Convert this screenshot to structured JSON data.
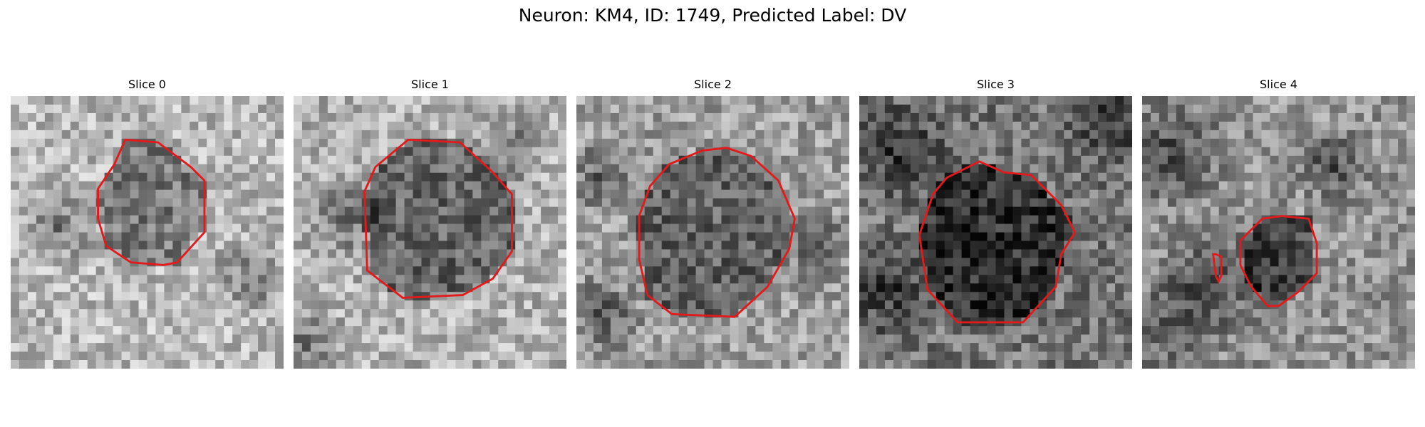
{
  "figure": {
    "title": "Neuron: KM4, ID: 1749, Predicted Label: DV"
  },
  "colors": {
    "contour": "#e31a1c",
    "background": "#ffffff"
  },
  "panels": [
    {
      "title": "Slice 0",
      "center_intensity": 0.48,
      "surround_intensity": 0.72,
      "contour": [
        [
          0.42,
          0.16
        ],
        [
          0.54,
          0.17
        ],
        [
          0.66,
          0.26
        ],
        [
          0.71,
          0.31
        ],
        [
          0.71,
          0.5
        ],
        [
          0.61,
          0.61
        ],
        [
          0.56,
          0.62
        ],
        [
          0.44,
          0.61
        ],
        [
          0.35,
          0.55
        ],
        [
          0.32,
          0.45
        ],
        [
          0.32,
          0.34
        ],
        [
          0.38,
          0.25
        ]
      ],
      "dark_blobs": [
        [
          0.18,
          0.47,
          0.1
        ],
        [
          0.88,
          0.66,
          0.1
        ]
      ]
    },
    {
      "title": "Slice 1",
      "center_intensity": 0.4,
      "surround_intensity": 0.7,
      "contour": [
        [
          0.42,
          0.16
        ],
        [
          0.61,
          0.17
        ],
        [
          0.73,
          0.28
        ],
        [
          0.8,
          0.36
        ],
        [
          0.8,
          0.57
        ],
        [
          0.73,
          0.67
        ],
        [
          0.62,
          0.73
        ],
        [
          0.4,
          0.74
        ],
        [
          0.27,
          0.64
        ],
        [
          0.26,
          0.35
        ],
        [
          0.3,
          0.26
        ]
      ],
      "dark_blobs": [
        [
          0.2,
          0.45,
          0.12
        ],
        [
          0.8,
          0.2,
          0.1
        ],
        [
          0.05,
          0.9,
          0.1
        ]
      ]
    },
    {
      "title": "Slice 2",
      "center_intensity": 0.38,
      "surround_intensity": 0.62,
      "contour": [
        [
          0.46,
          0.2
        ],
        [
          0.55,
          0.19
        ],
        [
          0.64,
          0.22
        ],
        [
          0.74,
          0.31
        ],
        [
          0.8,
          0.45
        ],
        [
          0.78,
          0.56
        ],
        [
          0.7,
          0.7
        ],
        [
          0.58,
          0.81
        ],
        [
          0.35,
          0.8
        ],
        [
          0.26,
          0.73
        ],
        [
          0.23,
          0.6
        ],
        [
          0.23,
          0.44
        ],
        [
          0.27,
          0.33
        ],
        [
          0.34,
          0.25
        ]
      ],
      "dark_blobs": [
        [
          0.1,
          0.3,
          0.1
        ],
        [
          0.88,
          0.55,
          0.1
        ],
        [
          0.1,
          0.8,
          0.1
        ]
      ]
    },
    {
      "title": "Slice 3",
      "center_intensity": 0.18,
      "surround_intensity": 0.46,
      "contour": [
        [
          0.44,
          0.24
        ],
        [
          0.53,
          0.28
        ],
        [
          0.63,
          0.29
        ],
        [
          0.74,
          0.4
        ],
        [
          0.79,
          0.5
        ],
        [
          0.74,
          0.58
        ],
        [
          0.72,
          0.7
        ],
        [
          0.6,
          0.83
        ],
        [
          0.36,
          0.83
        ],
        [
          0.25,
          0.71
        ],
        [
          0.22,
          0.51
        ],
        [
          0.27,
          0.36
        ],
        [
          0.32,
          0.3
        ]
      ],
      "dark_blobs": [
        [
          0.15,
          0.2,
          0.14
        ],
        [
          0.1,
          0.7,
          0.14
        ],
        [
          0.92,
          0.1,
          0.12
        ]
      ]
    },
    {
      "title": "Slice 4",
      "center_intensity": 0.3,
      "surround_intensity": 0.58,
      "contour": [
        [
          0.44,
          0.45
        ],
        [
          0.51,
          0.44
        ],
        [
          0.61,
          0.45
        ],
        [
          0.64,
          0.54
        ],
        [
          0.64,
          0.65
        ],
        [
          0.57,
          0.72
        ],
        [
          0.5,
          0.77
        ],
        [
          0.46,
          0.77
        ],
        [
          0.4,
          0.7
        ],
        [
          0.36,
          0.62
        ],
        [
          0.36,
          0.53
        ]
      ],
      "small_contour": [
        [
          0.26,
          0.58
        ],
        [
          0.27,
          0.66
        ],
        [
          0.28,
          0.68
        ],
        [
          0.29,
          0.66
        ],
        [
          0.29,
          0.59
        ],
        [
          0.27,
          0.58
        ]
      ],
      "dark_blobs": [
        [
          0.1,
          0.2,
          0.16
        ],
        [
          0.28,
          0.68,
          0.16
        ],
        [
          0.1,
          0.85,
          0.14
        ],
        [
          0.7,
          0.25,
          0.1
        ]
      ]
    }
  ]
}
